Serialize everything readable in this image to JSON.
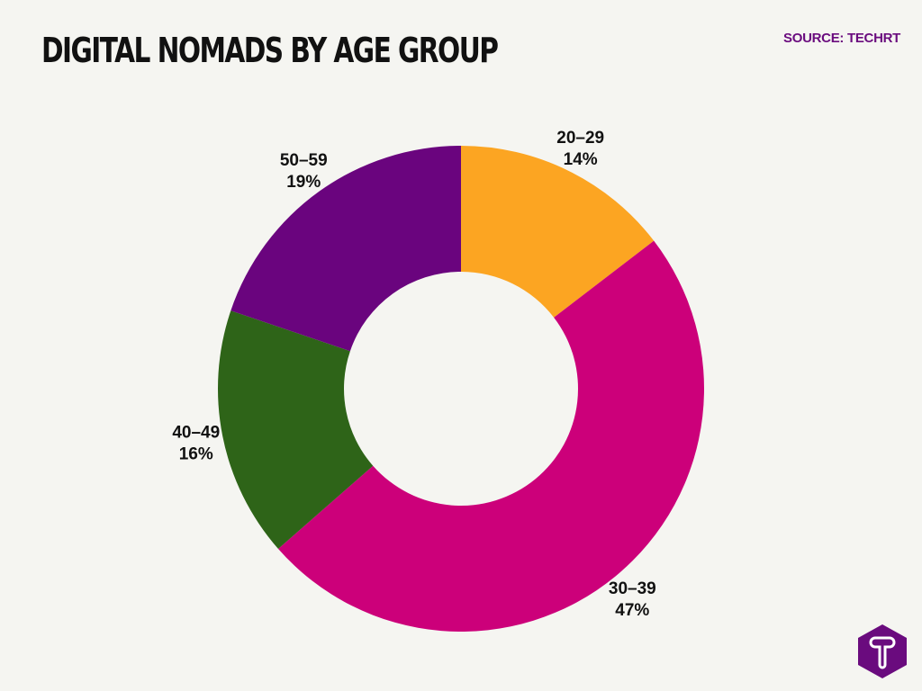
{
  "title": "DIGITAL NOMADS BY AGE GROUP",
  "source": "SOURCE: TECHRT",
  "logo": {
    "letter": "T",
    "color": "#6a0b7e"
  },
  "chart_data": {
    "type": "pie",
    "donut": true,
    "title": "DIGITAL NOMADS BY AGE GROUP",
    "start": "top",
    "direction": "clockwise",
    "categories": [
      "20–29",
      "30–39",
      "40–49",
      "50–59"
    ],
    "values": [
      14,
      47,
      16,
      19
    ],
    "labels": [
      "14%",
      "47%",
      "16%",
      "19%"
    ],
    "colors": [
      "#fca522",
      "#cc007a",
      "#2e6418",
      "#6a047e"
    ]
  }
}
